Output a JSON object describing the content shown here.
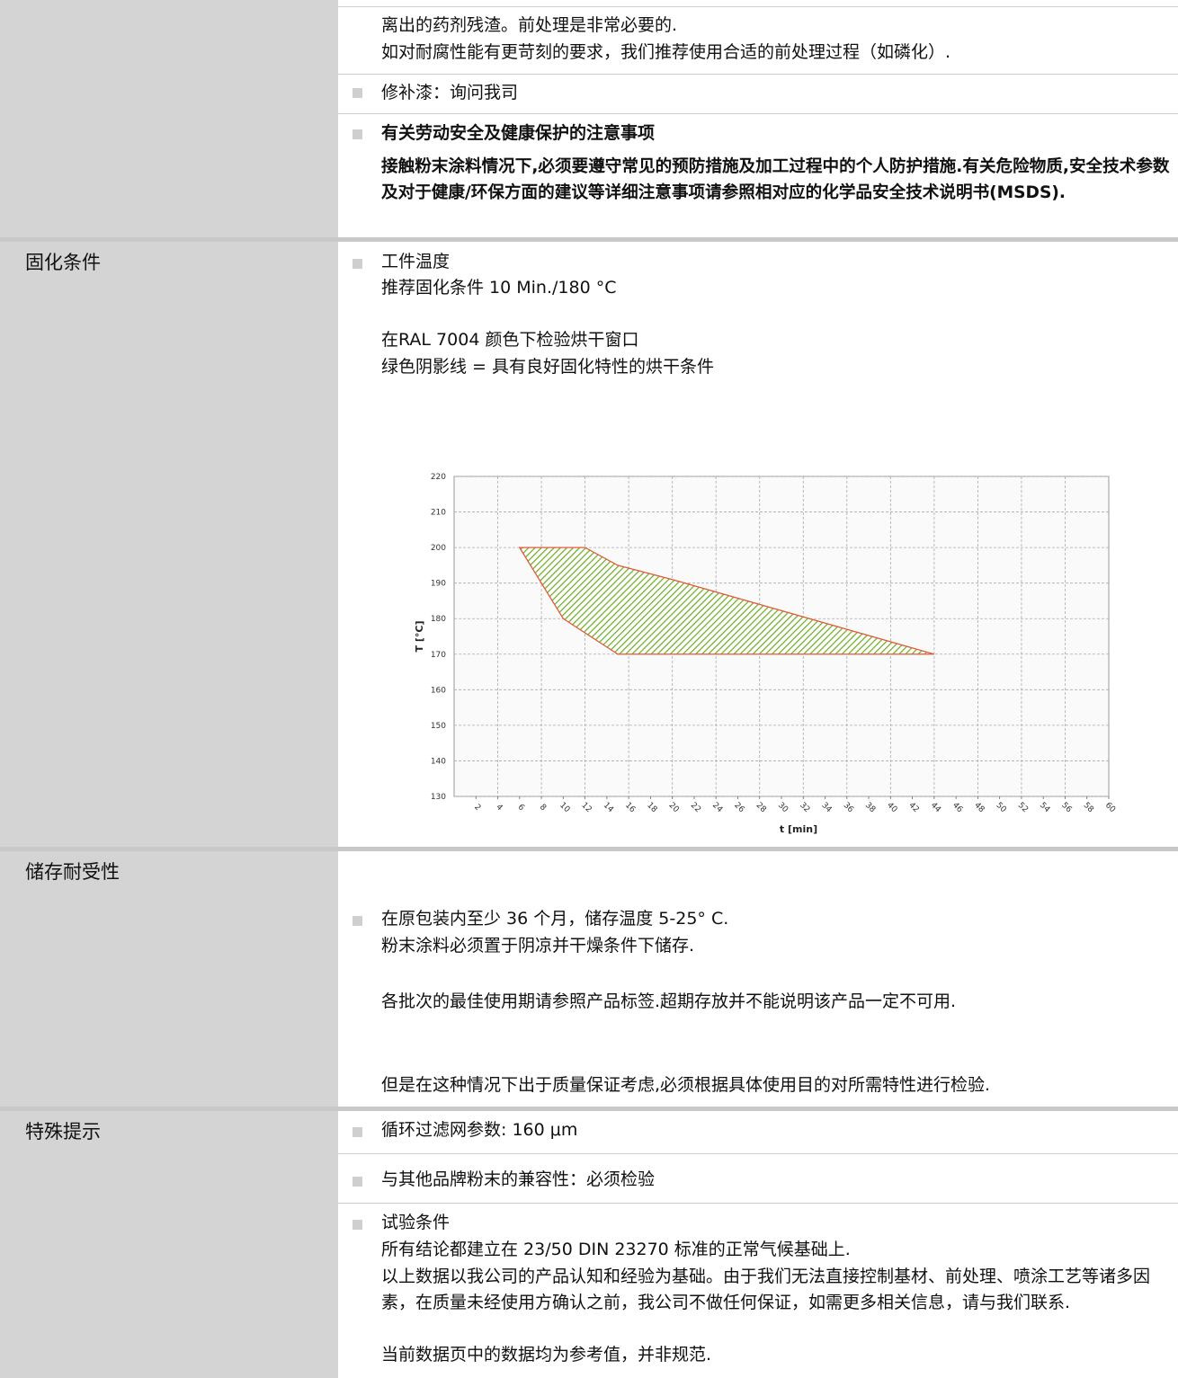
{
  "section1": {
    "line1": "离出的药剂残渣。前处理是非常必要的.",
    "line2": "如对耐腐性能有更苛刻的要求，我们推荐使用合适的前处理过程（如磷化）.",
    "touchup": "修补漆：询问我司",
    "safety_heading": "有关劳动安全及健康保护的注意事项",
    "safety_body": "接触粉末涂料情况下,必须要遵守常见的预防措施及加工过程中的个人防护措施.有关危险物质,安全技术参数及对于健康/环保方面的建议等详细注意事项请参照相对应的化学品安全技术说明书(MSDS)."
  },
  "curing": {
    "label": "固化条件",
    "item_title": "工件温度",
    "recommended": "推荐固化条件 10 Min./180 °C",
    "window_line": "在RAL  7004 颜色下检验烘干窗口",
    "legend_line": "绿色阴影线 = 具有良好固化特性的烘干条件"
  },
  "chart_data": {
    "type": "area",
    "xlabel": "t [min]",
    "ylabel": "T [°C]",
    "xlim": [
      0,
      60
    ],
    "ylim": [
      130,
      220
    ],
    "xticks": [
      "2",
      "4",
      "6",
      "8",
      "10",
      "12",
      "14",
      "16",
      "18",
      "20",
      "22",
      "24",
      "26",
      "28",
      "30",
      "32",
      "34",
      "36",
      "38",
      "40",
      "42",
      "44",
      "46",
      "48",
      "50",
      "52",
      "54",
      "56",
      "58",
      "60"
    ],
    "yticks": [
      "130",
      "140",
      "150",
      "160",
      "170",
      "180",
      "190",
      "200",
      "210",
      "220"
    ],
    "grid": true,
    "fill_color": "#6aaa1e",
    "border_color": "#e05a3a",
    "polygon": [
      [
        6,
        200
      ],
      [
        12,
        200
      ],
      [
        15,
        195
      ],
      [
        20,
        191
      ],
      [
        44,
        170
      ],
      [
        15,
        170
      ],
      [
        10,
        180
      ],
      [
        6,
        200
      ]
    ]
  },
  "storage": {
    "label": "储存耐受性",
    "line1": "在原包装内至少 36 个月，储存温度 5-25° C.",
    "line2": "粉末涂料必须置于阴凉并干燥条件下储存.",
    "line3": "各批次的最佳使用期请参照产品标签.超期存放并不能说明该产品一定不可用.",
    "line4": "但是在这种情况下出于质量保证考虑,必须根据具体使用目的对所需特性进行检验."
  },
  "special": {
    "label": "特殊提示",
    "sieve": "循环过滤网参数: 160 μm",
    "compat": "与其他品牌粉末的兼容性：必须检验",
    "test_title": "试验条件",
    "test_body": "所有结论都建立在 23/50 DIN 23270 标准的正常气候基础上.",
    "disclaimer": "以上数据以我公司的产品认知和经验为基础。由于我们无法直接控制基材、前处理、喷涂工艺等诸多因素，在质量未经使用方确认之前，我公司不做任何保证，如需更多相关信息，请与我们联系.",
    "reference": "当前数据页中的数据均为参考值，并非规范."
  }
}
